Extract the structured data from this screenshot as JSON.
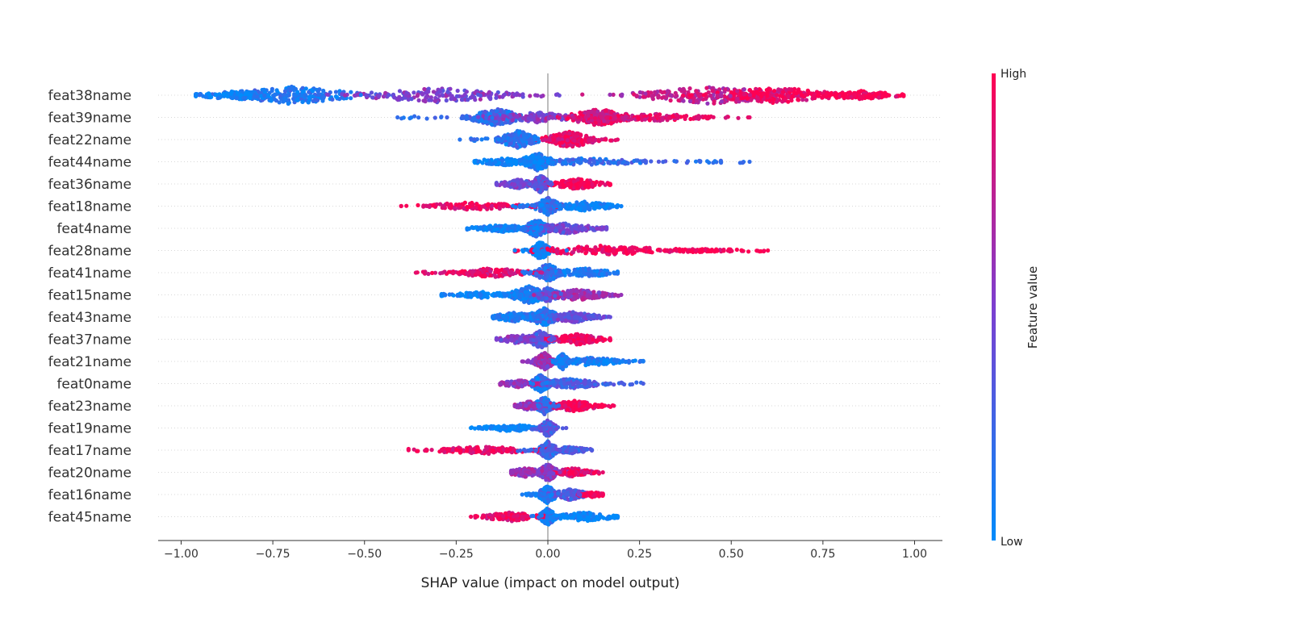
{
  "chart_data": {
    "type": "scatter",
    "subtype": "shap-beeswarm",
    "title": "",
    "xlabel": "SHAP value (impact on model output)",
    "ylabel": "",
    "xlim": [
      -1.07,
      1.07
    ],
    "xticks": [
      -1.0,
      -0.75,
      -0.5,
      -0.25,
      0.0,
      0.25,
      0.5,
      0.75,
      1.0
    ],
    "xtick_labels": [
      "−1.00",
      "−0.75",
      "−0.50",
      "−0.25",
      "0.00",
      "0.25",
      "0.50",
      "0.75",
      "1.00"
    ],
    "grid": "horizontal dotted",
    "colorbar": {
      "label": "Feature value",
      "high_label": "High",
      "low_label": "Low",
      "low_color": "#008bfb",
      "mid_color": "#7c3fd0",
      "high_color": "#ff0052"
    },
    "features": [
      {
        "name": "feat38name",
        "min": -0.96,
        "max": 0.97,
        "clusters": [
          {
            "c": -0.7,
            "w": 0.1,
            "d": 1.0,
            "v": 0.12
          },
          {
            "c": -0.3,
            "w": 0.12,
            "d": 0.8,
            "v": 0.5
          },
          {
            "c": 0.45,
            "w": 0.12,
            "d": 1.0,
            "v": 0.75
          },
          {
            "c": 0.62,
            "w": 0.1,
            "d": 0.9,
            "v": 0.95
          },
          {
            "c": 0.85,
            "w": 0.06,
            "d": 0.5,
            "v": 1.0
          },
          {
            "c": -0.85,
            "w": 0.06,
            "d": 0.5,
            "v": 0.05
          }
        ]
      },
      {
        "name": "feat39name",
        "min": -0.41,
        "max": 0.55,
        "clusters": [
          {
            "c": -0.14,
            "w": 0.04,
            "d": 1.0,
            "v": 0.2
          },
          {
            "c": -0.03,
            "w": 0.06,
            "d": 0.6,
            "v": 0.5
          },
          {
            "c": 0.14,
            "w": 0.05,
            "d": 0.95,
            "v": 0.85
          },
          {
            "c": 0.3,
            "w": 0.08,
            "d": 0.4,
            "v": 0.9
          }
        ]
      },
      {
        "name": "feat22name",
        "min": -0.24,
        "max": 0.19,
        "clusters": [
          {
            "c": -0.08,
            "w": 0.03,
            "d": 1.0,
            "v": 0.15
          },
          {
            "c": 0.06,
            "w": 0.04,
            "d": 0.9,
            "v": 0.9
          }
        ]
      },
      {
        "name": "feat44name",
        "min": -0.2,
        "max": 0.55,
        "clusters": [
          {
            "c": -0.03,
            "w": 0.025,
            "d": 1.0,
            "v": 0.05
          },
          {
            "c": 0.1,
            "w": 0.1,
            "d": 0.4,
            "v": 0.2
          },
          {
            "c": -0.12,
            "w": 0.05,
            "d": 0.4,
            "v": 0.0
          }
        ]
      },
      {
        "name": "feat36name",
        "min": -0.14,
        "max": 0.17,
        "clusters": [
          {
            "c": -0.02,
            "w": 0.015,
            "d": 1.0,
            "v": 0.4
          },
          {
            "c": 0.08,
            "w": 0.04,
            "d": 0.6,
            "v": 1.0
          },
          {
            "c": -0.08,
            "w": 0.03,
            "d": 0.5,
            "v": 0.45
          }
        ]
      },
      {
        "name": "feat18name",
        "min": -0.4,
        "max": 0.2,
        "clusters": [
          {
            "c": 0.0,
            "w": 0.02,
            "d": 1.0,
            "v": 0.15
          },
          {
            "c": -0.2,
            "w": 0.08,
            "d": 0.45,
            "v": 0.95
          },
          {
            "c": 0.1,
            "w": 0.05,
            "d": 0.5,
            "v": 0.05
          }
        ]
      },
      {
        "name": "feat4name",
        "min": -0.22,
        "max": 0.16,
        "clusters": [
          {
            "c": -0.03,
            "w": 0.02,
            "d": 1.0,
            "v": 0.1
          },
          {
            "c": 0.05,
            "w": 0.05,
            "d": 0.6,
            "v": 0.45
          },
          {
            "c": -0.12,
            "w": 0.05,
            "d": 0.4,
            "v": 0.05
          }
        ]
      },
      {
        "name": "feat28name",
        "min": -0.09,
        "max": 0.6,
        "clusters": [
          {
            "c": -0.02,
            "w": 0.015,
            "d": 1.0,
            "v": 0.05
          },
          {
            "c": 0.15,
            "w": 0.12,
            "d": 0.55,
            "v": 0.95
          },
          {
            "c": 0.4,
            "w": 0.07,
            "d": 0.2,
            "v": 1.0
          }
        ]
      },
      {
        "name": "feat41name",
        "min": -0.36,
        "max": 0.19,
        "clusters": [
          {
            "c": 0.0,
            "w": 0.02,
            "d": 1.0,
            "v": 0.2
          },
          {
            "c": -0.15,
            "w": 0.07,
            "d": 0.5,
            "v": 0.9
          },
          {
            "c": 0.1,
            "w": 0.05,
            "d": 0.5,
            "v": 0.1
          }
        ]
      },
      {
        "name": "feat15name",
        "min": -0.29,
        "max": 0.2,
        "clusters": [
          {
            "c": -0.05,
            "w": 0.03,
            "d": 1.0,
            "v": 0.1
          },
          {
            "c": 0.0,
            "w": 0.02,
            "d": 0.8,
            "v": 0.3
          },
          {
            "c": 0.08,
            "w": 0.05,
            "d": 0.6,
            "v": 0.6
          },
          {
            "c": -0.18,
            "w": 0.06,
            "d": 0.35,
            "v": 0.05
          }
        ]
      },
      {
        "name": "feat43name",
        "min": -0.15,
        "max": 0.17,
        "clusters": [
          {
            "c": -0.01,
            "w": 0.025,
            "d": 1.0,
            "v": 0.15
          },
          {
            "c": 0.07,
            "w": 0.04,
            "d": 0.6,
            "v": 0.4
          },
          {
            "c": -0.09,
            "w": 0.04,
            "d": 0.5,
            "v": 0.1
          }
        ]
      },
      {
        "name": "feat37name",
        "min": -0.14,
        "max": 0.17,
        "clusters": [
          {
            "c": -0.02,
            "w": 0.02,
            "d": 1.0,
            "v": 0.35
          },
          {
            "c": 0.08,
            "w": 0.04,
            "d": 0.6,
            "v": 0.95
          },
          {
            "c": -0.08,
            "w": 0.03,
            "d": 0.5,
            "v": 0.5
          }
        ]
      },
      {
        "name": "feat21name",
        "min": -0.07,
        "max": 0.26,
        "clusters": [
          {
            "c": -0.01,
            "w": 0.015,
            "d": 1.0,
            "v": 0.6
          },
          {
            "c": 0.04,
            "w": 0.01,
            "d": 0.9,
            "v": 0.05
          },
          {
            "c": 0.12,
            "w": 0.05,
            "d": 0.5,
            "v": 0.1
          }
        ]
      },
      {
        "name": "feat0name",
        "min": -0.13,
        "max": 0.26,
        "clusters": [
          {
            "c": -0.02,
            "w": 0.015,
            "d": 1.0,
            "v": 0.1
          },
          {
            "c": 0.06,
            "w": 0.05,
            "d": 0.6,
            "v": 0.3
          },
          {
            "c": -0.08,
            "w": 0.03,
            "d": 0.4,
            "v": 0.6
          }
        ]
      },
      {
        "name": "feat23name",
        "min": -0.09,
        "max": 0.18,
        "clusters": [
          {
            "c": -0.01,
            "w": 0.015,
            "d": 1.0,
            "v": 0.2
          },
          {
            "c": 0.07,
            "w": 0.04,
            "d": 0.6,
            "v": 0.95
          },
          {
            "c": -0.05,
            "w": 0.02,
            "d": 0.5,
            "v": 0.6
          }
        ]
      },
      {
        "name": "feat19name",
        "min": -0.21,
        "max": 0.05,
        "clusters": [
          {
            "c": 0.0,
            "w": 0.012,
            "d": 1.0,
            "v": 0.35
          },
          {
            "c": -0.1,
            "w": 0.05,
            "d": 0.4,
            "v": 0.0
          }
        ]
      },
      {
        "name": "feat17name",
        "min": -0.38,
        "max": 0.12,
        "clusters": [
          {
            "c": 0.0,
            "w": 0.015,
            "d": 1.0,
            "v": 0.25
          },
          {
            "c": -0.18,
            "w": 0.08,
            "d": 0.45,
            "v": 0.95
          },
          {
            "c": 0.06,
            "w": 0.03,
            "d": 0.4,
            "v": 0.3
          }
        ]
      },
      {
        "name": "feat20name",
        "min": -0.1,
        "max": 0.15,
        "clusters": [
          {
            "c": 0.0,
            "w": 0.015,
            "d": 1.0,
            "v": 0.55
          },
          {
            "c": 0.07,
            "w": 0.03,
            "d": 0.5,
            "v": 0.9
          },
          {
            "c": -0.06,
            "w": 0.03,
            "d": 0.5,
            "v": 0.6
          }
        ]
      },
      {
        "name": "feat16name",
        "min": -0.07,
        "max": 0.15,
        "clusters": [
          {
            "c": 0.0,
            "w": 0.015,
            "d": 1.0,
            "v": 0.1
          },
          {
            "c": 0.06,
            "w": 0.03,
            "d": 0.6,
            "v": 0.35
          },
          {
            "c": 0.12,
            "w": 0.02,
            "d": 0.3,
            "v": 0.95
          }
        ]
      },
      {
        "name": "feat45name",
        "min": -0.21,
        "max": 0.19,
        "clusters": [
          {
            "c": 0.0,
            "w": 0.012,
            "d": 1.0,
            "v": 0.1
          },
          {
            "c": -0.1,
            "w": 0.05,
            "d": 0.5,
            "v": 0.95
          },
          {
            "c": 0.1,
            "w": 0.05,
            "d": 0.5,
            "v": 0.0
          }
        ]
      }
    ]
  }
}
